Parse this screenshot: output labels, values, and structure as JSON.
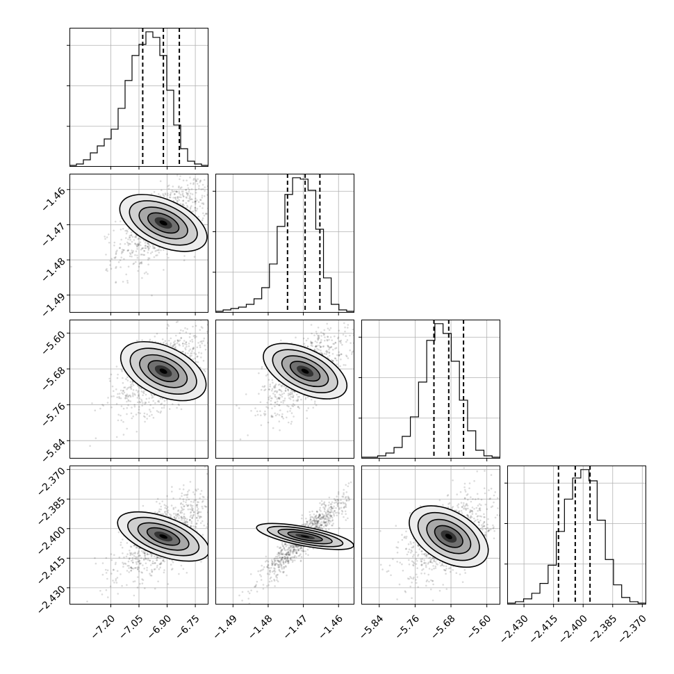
{
  "chart_data": {
    "type": "corner",
    "grid": true,
    "variables": [
      {
        "range": [
          -7.42,
          -6.68
        ],
        "ticks": [
          -7.2,
          -7.05,
          -6.9,
          -6.75
        ],
        "tick_labels": [
          "−7.20",
          "−7.05",
          "−6.90",
          "−6.75"
        ],
        "quantiles": [
          -7.03,
          -6.92,
          -6.835
        ],
        "median": -6.92,
        "sigma": 0.09,
        "hist": [
          0.01,
          0.02,
          0.05,
          0.1,
          0.15,
          0.2,
          0.27,
          0.42,
          0.62,
          0.8,
          0.88,
          0.97,
          0.93,
          0.8,
          0.55,
          0.3,
          0.13,
          0.04,
          0.02,
          0.01
        ]
      },
      {
        "range": [
          -1.495,
          -1.4555
        ],
        "ticks": [
          -1.49,
          -1.48,
          -1.47,
          -1.46
        ],
        "tick_labels": [
          "−1.49",
          "−1.48",
          "−1.47",
          "−1.46"
        ],
        "quantiles": [
          -1.4745,
          -1.4695,
          -1.4653
        ],
        "median": -1.4695,
        "sigma": 0.0045,
        "hist": [
          0.01,
          0.02,
          0.03,
          0.04,
          0.06,
          0.1,
          0.18,
          0.35,
          0.62,
          0.85,
          0.97,
          0.96,
          0.88,
          0.6,
          0.25,
          0.06,
          0.02,
          0.01
        ]
      },
      {
        "range": [
          -5.88,
          -5.57
        ],
        "ticks": [
          -5.84,
          -5.76,
          -5.68,
          -5.6
        ],
        "tick_labels": [
          "−5.84",
          "−5.76",
          "−5.68",
          "−5.60"
        ],
        "quantiles": [
          -5.718,
          -5.685,
          -5.652
        ],
        "median": -5.685,
        "sigma": 0.035,
        "hist": [
          0.01,
          0.01,
          0.02,
          0.04,
          0.08,
          0.16,
          0.3,
          0.55,
          0.85,
          0.97,
          0.9,
          0.7,
          0.42,
          0.2,
          0.06,
          0.02,
          0.01
        ]
      },
      {
        "range": [
          -2.4385,
          -2.368
        ],
        "ticks": [
          -2.43,
          -2.415,
          -2.4,
          -2.385,
          -2.37
        ],
        "tick_labels": [
          "−2.430",
          "−2.415",
          "−2.400",
          "−2.385",
          "−2.370"
        ],
        "quantiles": [
          -2.4125,
          -2.404,
          -2.3965
        ],
        "median": -2.404,
        "sigma": 0.008,
        "hist": [
          0.01,
          0.02,
          0.04,
          0.08,
          0.15,
          0.28,
          0.52,
          0.75,
          0.9,
          0.96,
          0.88,
          0.6,
          0.32,
          0.14,
          0.05,
          0.02,
          0.01
        ]
      }
    ],
    "correlations": {
      "1-0": 0.6,
      "2-0": 0.55,
      "2-1": 0.62,
      "3-0": 0.72,
      "3-1": 0.93,
      "3-2": 0.5
    }
  }
}
